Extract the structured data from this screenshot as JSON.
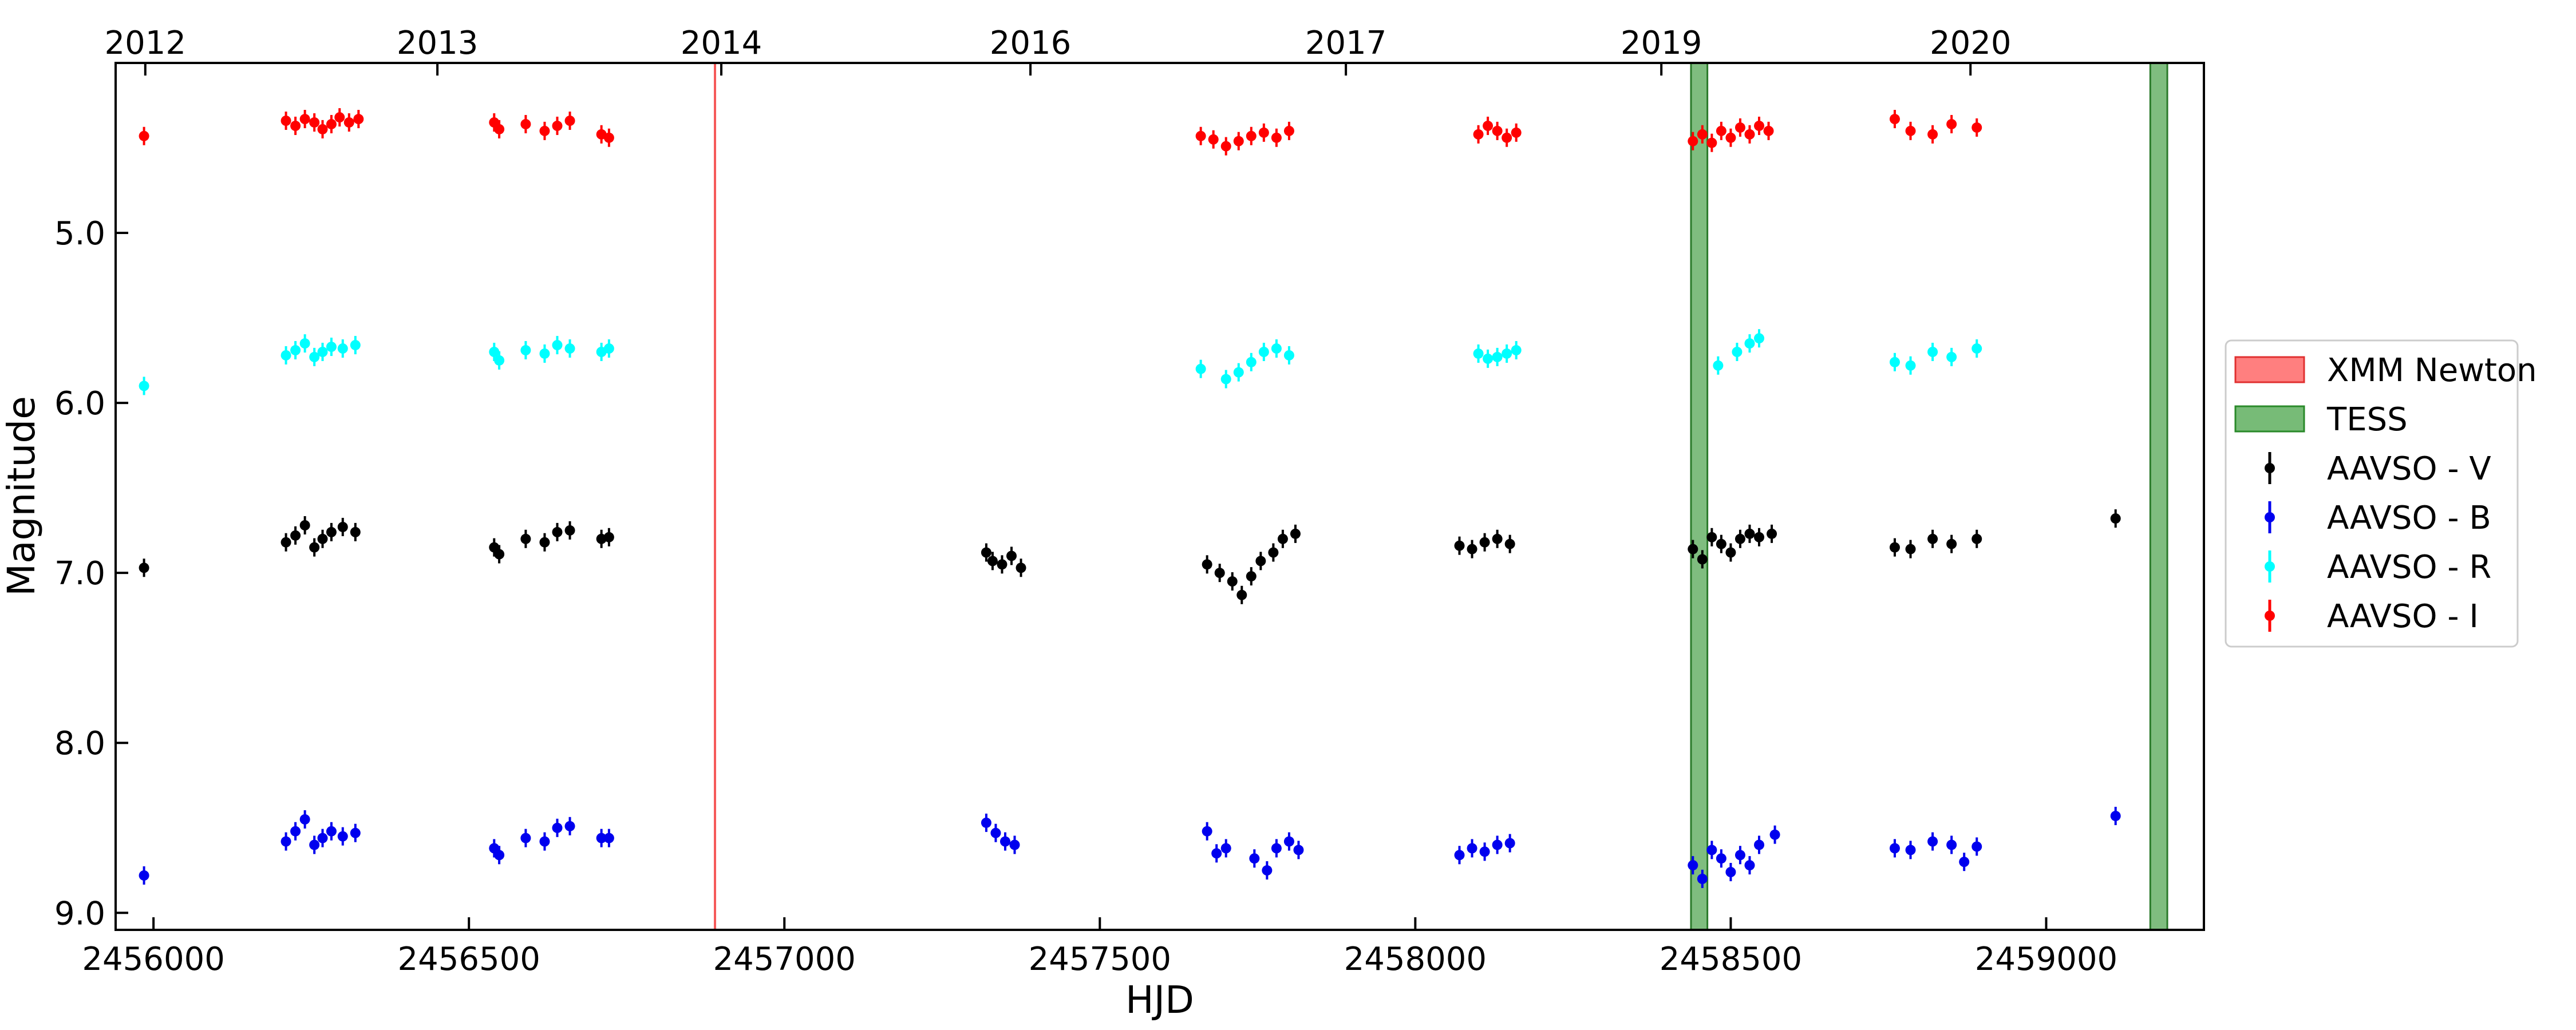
{
  "chart_data": {
    "type": "scatter",
    "title": "",
    "xlabel": "HJD",
    "ylabel": "Magnitude",
    "xlim": [
      2455940,
      2459250
    ],
    "ylim": [
      4.0,
      9.1
    ],
    "y_inverted": true,
    "xticks": [
      2456000,
      2456500,
      2457000,
      2457500,
      2458000,
      2458500,
      2459000
    ],
    "xtick_labels": [
      "2456000",
      "2456500",
      "2457000",
      "2457500",
      "2458000",
      "2458500",
      "2459000"
    ],
    "yticks": [
      5.0,
      6.0,
      7.0,
      8.0,
      9.0
    ],
    "ytick_labels": [
      "5.0",
      "6.0",
      "7.0",
      "8.0",
      "9.0"
    ],
    "year_axis": [
      {
        "label": "2012",
        "x": 2455987
      },
      {
        "label": "2013",
        "x": 2456450
      },
      {
        "label": "2014",
        "x": 2456900
      },
      {
        "label": "2016",
        "x": 2457390
      },
      {
        "label": "2017",
        "x": 2457890
      },
      {
        "label": "2019",
        "x": 2458390
      },
      {
        "label": "2020",
        "x": 2458880
      }
    ],
    "grid": false,
    "legend_position": "outside-right",
    "spans": [
      {
        "name": "XMM Newton",
        "kind": "line",
        "x": 2456890,
        "color": "#f55a5a"
      },
      {
        "name": "TESS",
        "kind": "band",
        "x0": 2458437,
        "x1": 2458463,
        "color": "#3a9a3a"
      },
      {
        "name": "TESS",
        "kind": "band",
        "x0": 2459165,
        "x1": 2459192,
        "color": "#3a9a3a"
      }
    ],
    "legend": [
      {
        "name": "XMM Newton",
        "kind": "patch",
        "color": "#ff7f7f",
        "edge": "#e03030"
      },
      {
        "name": "TESS",
        "kind": "patch",
        "color": "#77bb77",
        "edge": "#2a8a2a"
      },
      {
        "name": "AAVSO - V",
        "kind": "marker",
        "color": "#000000"
      },
      {
        "name": "AAVSO - B",
        "kind": "marker",
        "color": "#0000ee"
      },
      {
        "name": "AAVSO - R",
        "kind": "marker",
        "color": "#00ffff"
      },
      {
        "name": "AAVSO - I",
        "kind": "marker",
        "color": "#ff0000"
      }
    ],
    "series": [
      {
        "name": "AAVSO - I",
        "color": "#ff0000",
        "points": [
          [
            2455985,
            4.43
          ],
          [
            2456210,
            4.34
          ],
          [
            2456225,
            4.37
          ],
          [
            2456240,
            4.33
          ],
          [
            2456255,
            4.35
          ],
          [
            2456268,
            4.39
          ],
          [
            2456282,
            4.36
          ],
          [
            2456295,
            4.32
          ],
          [
            2456310,
            4.35
          ],
          [
            2456325,
            4.33
          ],
          [
            2456540,
            4.35
          ],
          [
            2456548,
            4.39
          ],
          [
            2456590,
            4.36
          ],
          [
            2456620,
            4.4
          ],
          [
            2456640,
            4.37
          ],
          [
            2456660,
            4.34
          ],
          [
            2456710,
            4.42
          ],
          [
            2456722,
            4.44
          ],
          [
            2457660,
            4.43
          ],
          [
            2457680,
            4.45
          ],
          [
            2457700,
            4.49
          ],
          [
            2457720,
            4.46
          ],
          [
            2457740,
            4.43
          ],
          [
            2457760,
            4.41
          ],
          [
            2457780,
            4.44
          ],
          [
            2457800,
            4.4
          ],
          [
            2458100,
            4.42
          ],
          [
            2458115,
            4.37
          ],
          [
            2458130,
            4.4
          ],
          [
            2458145,
            4.44
          ],
          [
            2458160,
            4.41
          ],
          [
            2458440,
            4.46
          ],
          [
            2458455,
            4.42
          ],
          [
            2458470,
            4.47
          ],
          [
            2458485,
            4.4
          ],
          [
            2458500,
            4.44
          ],
          [
            2458515,
            4.38
          ],
          [
            2458530,
            4.42
          ],
          [
            2458545,
            4.37
          ],
          [
            2458560,
            4.4
          ],
          [
            2458760,
            4.33
          ],
          [
            2458785,
            4.4
          ],
          [
            2458820,
            4.42
          ],
          [
            2458850,
            4.36
          ],
          [
            2458890,
            4.38
          ]
        ]
      },
      {
        "name": "AAVSO - R",
        "color": "#00ffff",
        "points": [
          [
            2455985,
            5.9
          ],
          [
            2456210,
            5.72
          ],
          [
            2456225,
            5.69
          ],
          [
            2456240,
            5.65
          ],
          [
            2456255,
            5.73
          ],
          [
            2456268,
            5.7
          ],
          [
            2456282,
            5.67
          ],
          [
            2456300,
            5.68
          ],
          [
            2456320,
            5.66
          ],
          [
            2456540,
            5.7
          ],
          [
            2456548,
            5.75
          ],
          [
            2456590,
            5.69
          ],
          [
            2456620,
            5.71
          ],
          [
            2456640,
            5.66
          ],
          [
            2456660,
            5.68
          ],
          [
            2456710,
            5.7
          ],
          [
            2456722,
            5.68
          ],
          [
            2457660,
            5.8
          ],
          [
            2457700,
            5.86
          ],
          [
            2457720,
            5.82
          ],
          [
            2457740,
            5.76
          ],
          [
            2457760,
            5.7
          ],
          [
            2457780,
            5.68
          ],
          [
            2457800,
            5.72
          ],
          [
            2458100,
            5.71
          ],
          [
            2458115,
            5.74
          ],
          [
            2458130,
            5.73
          ],
          [
            2458145,
            5.71
          ],
          [
            2458160,
            5.69
          ],
          [
            2458480,
            5.78
          ],
          [
            2458510,
            5.7
          ],
          [
            2458530,
            5.65
          ],
          [
            2458545,
            5.62
          ],
          [
            2458760,
            5.76
          ],
          [
            2458785,
            5.78
          ],
          [
            2458820,
            5.7
          ],
          [
            2458850,
            5.73
          ],
          [
            2458890,
            5.68
          ]
        ]
      },
      {
        "name": "AAVSO - V",
        "color": "#000000",
        "points": [
          [
            2455985,
            6.97
          ],
          [
            2456210,
            6.82
          ],
          [
            2456225,
            6.78
          ],
          [
            2456240,
            6.72
          ],
          [
            2456255,
            6.85
          ],
          [
            2456268,
            6.8
          ],
          [
            2456282,
            6.76
          ],
          [
            2456300,
            6.73
          ],
          [
            2456320,
            6.76
          ],
          [
            2456540,
            6.85
          ],
          [
            2456548,
            6.89
          ],
          [
            2456590,
            6.8
          ],
          [
            2456620,
            6.82
          ],
          [
            2456640,
            6.76
          ],
          [
            2456660,
            6.75
          ],
          [
            2456710,
            6.8
          ],
          [
            2456722,
            6.79
          ],
          [
            2457320,
            6.88
          ],
          [
            2457330,
            6.93
          ],
          [
            2457345,
            6.95
          ],
          [
            2457360,
            6.9
          ],
          [
            2457375,
            6.97
          ],
          [
            2457670,
            6.95
          ],
          [
            2457690,
            7.0
          ],
          [
            2457710,
            7.05
          ],
          [
            2457725,
            7.13
          ],
          [
            2457740,
            7.02
          ],
          [
            2457755,
            6.93
          ],
          [
            2457775,
            6.88
          ],
          [
            2457790,
            6.8
          ],
          [
            2457810,
            6.77
          ],
          [
            2458070,
            6.84
          ],
          [
            2458090,
            6.86
          ],
          [
            2458110,
            6.82
          ],
          [
            2458130,
            6.8
          ],
          [
            2458150,
            6.83
          ],
          [
            2458440,
            6.86
          ],
          [
            2458455,
            6.92
          ],
          [
            2458470,
            6.79
          ],
          [
            2458485,
            6.83
          ],
          [
            2458500,
            6.88
          ],
          [
            2458515,
            6.8
          ],
          [
            2458530,
            6.77
          ],
          [
            2458545,
            6.79
          ],
          [
            2458565,
            6.77
          ],
          [
            2458760,
            6.85
          ],
          [
            2458785,
            6.86
          ],
          [
            2458820,
            6.8
          ],
          [
            2458850,
            6.83
          ],
          [
            2458890,
            6.8
          ],
          [
            2459110,
            6.68
          ]
        ]
      },
      {
        "name": "AAVSO - B",
        "color": "#0000ee",
        "points": [
          [
            2455985,
            8.78
          ],
          [
            2456210,
            8.58
          ],
          [
            2456225,
            8.52
          ],
          [
            2456240,
            8.45
          ],
          [
            2456255,
            8.6
          ],
          [
            2456268,
            8.56
          ],
          [
            2456282,
            8.52
          ],
          [
            2456300,
            8.55
          ],
          [
            2456320,
            8.53
          ],
          [
            2456540,
            8.62
          ],
          [
            2456548,
            8.66
          ],
          [
            2456590,
            8.56
          ],
          [
            2456620,
            8.58
          ],
          [
            2456640,
            8.5
          ],
          [
            2456660,
            8.49
          ],
          [
            2456710,
            8.56
          ],
          [
            2456722,
            8.56
          ],
          [
            2457320,
            8.47
          ],
          [
            2457335,
            8.53
          ],
          [
            2457350,
            8.58
          ],
          [
            2457365,
            8.6
          ],
          [
            2457670,
            8.52
          ],
          [
            2457685,
            8.65
          ],
          [
            2457700,
            8.62
          ],
          [
            2457745,
            8.68
          ],
          [
            2457765,
            8.75
          ],
          [
            2457780,
            8.62
          ],
          [
            2457800,
            8.58
          ],
          [
            2457815,
            8.63
          ],
          [
            2458070,
            8.66
          ],
          [
            2458090,
            8.62
          ],
          [
            2458110,
            8.64
          ],
          [
            2458130,
            8.6
          ],
          [
            2458150,
            8.59
          ],
          [
            2458440,
            8.72
          ],
          [
            2458455,
            8.8
          ],
          [
            2458470,
            8.63
          ],
          [
            2458485,
            8.68
          ],
          [
            2458500,
            8.76
          ],
          [
            2458515,
            8.66
          ],
          [
            2458530,
            8.72
          ],
          [
            2458545,
            8.6
          ],
          [
            2458570,
            8.54
          ],
          [
            2458760,
            8.62
          ],
          [
            2458785,
            8.63
          ],
          [
            2458820,
            8.58
          ],
          [
            2458850,
            8.6
          ],
          [
            2458870,
            8.7
          ],
          [
            2458890,
            8.61
          ],
          [
            2459110,
            8.43
          ]
        ]
      }
    ]
  }
}
